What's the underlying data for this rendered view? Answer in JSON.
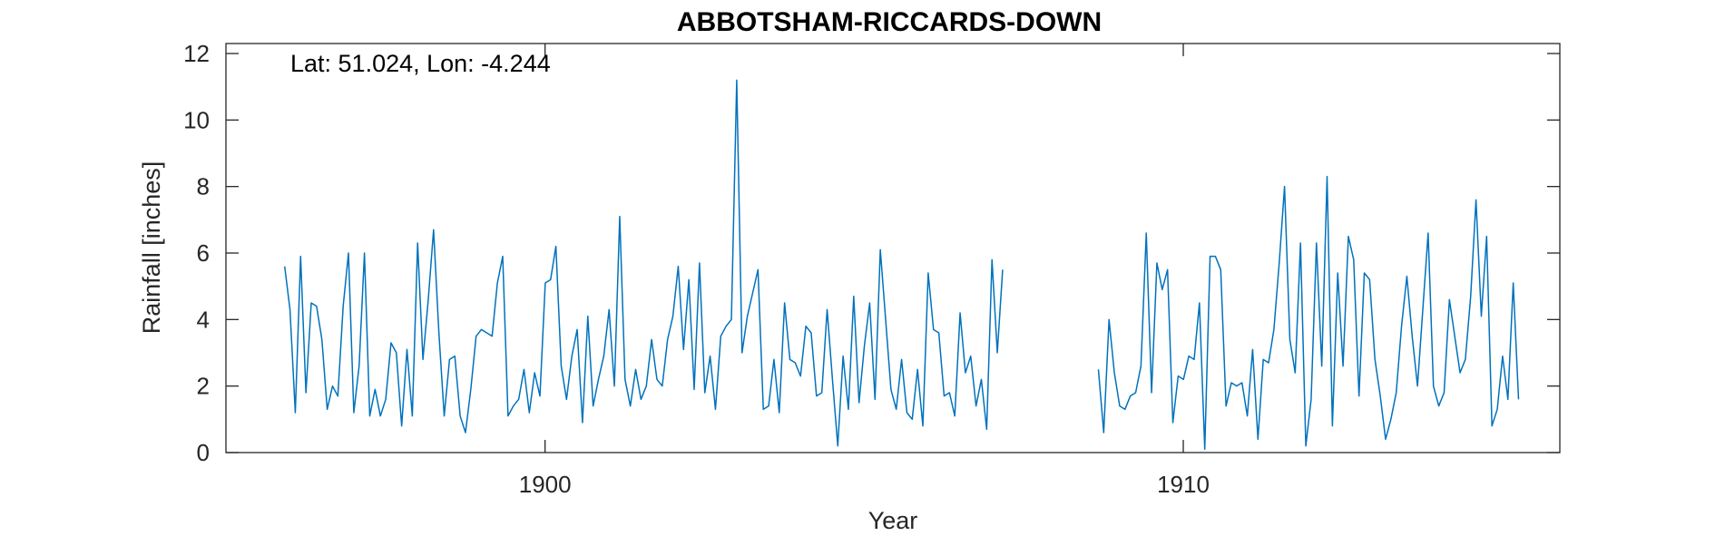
{
  "chart_data": {
    "type": "line",
    "title": "ABBOTSHAM-RICCARDS-DOWN",
    "xlabel": "Year",
    "ylabel": "Rainfall [inches]",
    "annotation": "Lat: 51.024, Lon: -4.244",
    "xlim": [
      1895.0,
      1915.9
    ],
    "ylim": [
      0,
      12.3
    ],
    "xticks": [
      1900,
      1910
    ],
    "xtick_labels": [
      "1900",
      "1910"
    ],
    "yticks": [
      0,
      2,
      4,
      6,
      8,
      10,
      12
    ],
    "ytick_labels": [
      "0",
      "2",
      "4",
      "6",
      "8",
      "10",
      "12"
    ],
    "grid": false,
    "series": [
      {
        "color": "#0072BD",
        "segments": [
          {
            "start": 1895.92,
            "step": 0.08333,
            "values": [
              5.6,
              4.3,
              1.2,
              5.9,
              1.8,
              4.5,
              4.4,
              3.4,
              1.3,
              2.0,
              1.7,
              4.4,
              6.0,
              1.2,
              2.6,
              6.0,
              1.1,
              1.9,
              1.1,
              1.6,
              3.3,
              3.0,
              0.8,
              3.1,
              1.1,
              6.3,
              2.8,
              4.6,
              6.7,
              3.6,
              1.1,
              2.8,
              2.9,
              1.1,
              0.6,
              1.9,
              3.5,
              3.7,
              3.6,
              3.5,
              5.1,
              5.9,
              1.1,
              1.4,
              1.6,
              2.5,
              1.2,
              2.4,
              1.7,
              5.1,
              5.2,
              6.2,
              2.6,
              1.6,
              2.9,
              3.7,
              0.9,
              4.1,
              1.4,
              2.2,
              2.9,
              4.3,
              2.0,
              7.1,
              2.2,
              1.4,
              2.5,
              1.6,
              2.0,
              3.4,
              2.2,
              2.0,
              3.4,
              4.1,
              5.6,
              3.1,
              5.2,
              1.9,
              5.7,
              1.8,
              2.9,
              1.3,
              3.5,
              3.8,
              4.0,
              11.2,
              3.0,
              4.1,
              4.8,
              5.5,
              1.3,
              1.4,
              2.8,
              1.2,
              4.5,
              2.8,
              2.7,
              2.3,
              3.8,
              3.6,
              1.7,
              1.8,
              4.3,
              2.2,
              0.2,
              2.9,
              1.3,
              4.7,
              1.5,
              3.2,
              4.5,
              1.6,
              6.1,
              4.0,
              1.9,
              1.3,
              2.8,
              1.2,
              1.0,
              2.5,
              0.8,
              5.4,
              3.7,
              3.6,
              1.7,
              1.8,
              1.1,
              4.2,
              2.4,
              2.9,
              1.4,
              2.2,
              0.7,
              5.8,
              3.0,
              5.5
            ]
          },
          {
            "start": 1908.67,
            "step": 0.08333,
            "values": [
              2.5,
              0.6,
              4.0,
              2.4,
              1.4,
              1.3,
              1.7,
              1.8,
              2.6,
              6.6,
              1.8,
              5.7,
              4.9,
              5.5,
              0.9,
              2.3,
              2.2,
              2.9,
              2.8,
              4.5,
              0.1,
              5.9,
              5.9,
              5.5,
              1.4,
              2.1,
              2.0,
              2.1,
              1.1,
              3.1,
              0.4,
              2.8,
              2.7,
              3.7,
              5.7,
              8.0,
              3.4,
              2.4,
              6.3,
              0.2,
              1.6,
              6.3,
              2.6,
              8.3,
              0.8,
              5.4,
              2.6,
              6.5,
              5.8,
              1.7,
              5.4,
              5.2,
              2.8,
              1.7,
              0.4,
              1.0,
              1.8,
              3.8,
              5.3,
              3.5,
              2.0,
              4.3,
              6.6,
              2.0,
              1.4,
              1.8,
              4.6,
              3.5,
              2.4,
              2.8,
              4.7,
              7.6,
              4.1,
              6.5,
              0.8,
              1.3,
              2.9,
              1.6,
              5.1,
              1.6
            ]
          }
        ]
      }
    ]
  }
}
